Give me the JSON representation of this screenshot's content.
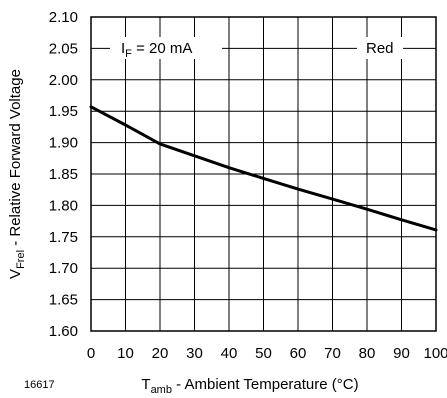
{
  "chart_data": {
    "type": "line",
    "title": "",
    "xlabel": {
      "main": "T",
      "sub": "amb",
      "rest": " - Ambient Temperature (°C)"
    },
    "ylabel": {
      "main": "V",
      "sub": "Frel",
      "rest": " - Relative Forward Voltage"
    },
    "xlim": [
      0,
      100
    ],
    "ylim": [
      1.6,
      2.1
    ],
    "x_ticks": [
      "0",
      "10",
      "20",
      "30",
      "40",
      "50",
      "60",
      "70",
      "80",
      "90",
      "100"
    ],
    "y_ticks": [
      "1.60",
      "1.65",
      "1.70",
      "1.75",
      "1.80",
      "1.85",
      "1.90",
      "1.95",
      "2.00",
      "2.05",
      "2.10"
    ],
    "grid": true,
    "series": [
      {
        "x": [
          0,
          10,
          20,
          30,
          40,
          50,
          60,
          70,
          80,
          90,
          100
        ],
        "values": [
          1.957,
          1.928,
          1.898,
          1.879,
          1.86,
          1.843,
          1.826,
          1.81,
          1.794,
          1.777,
          1.761
        ]
      }
    ],
    "annotations": {
      "condition": {
        "main": "I",
        "sub": "F",
        "rest": " = 20 mA"
      },
      "series_tag": "Red"
    },
    "figure_id": "16617"
  }
}
